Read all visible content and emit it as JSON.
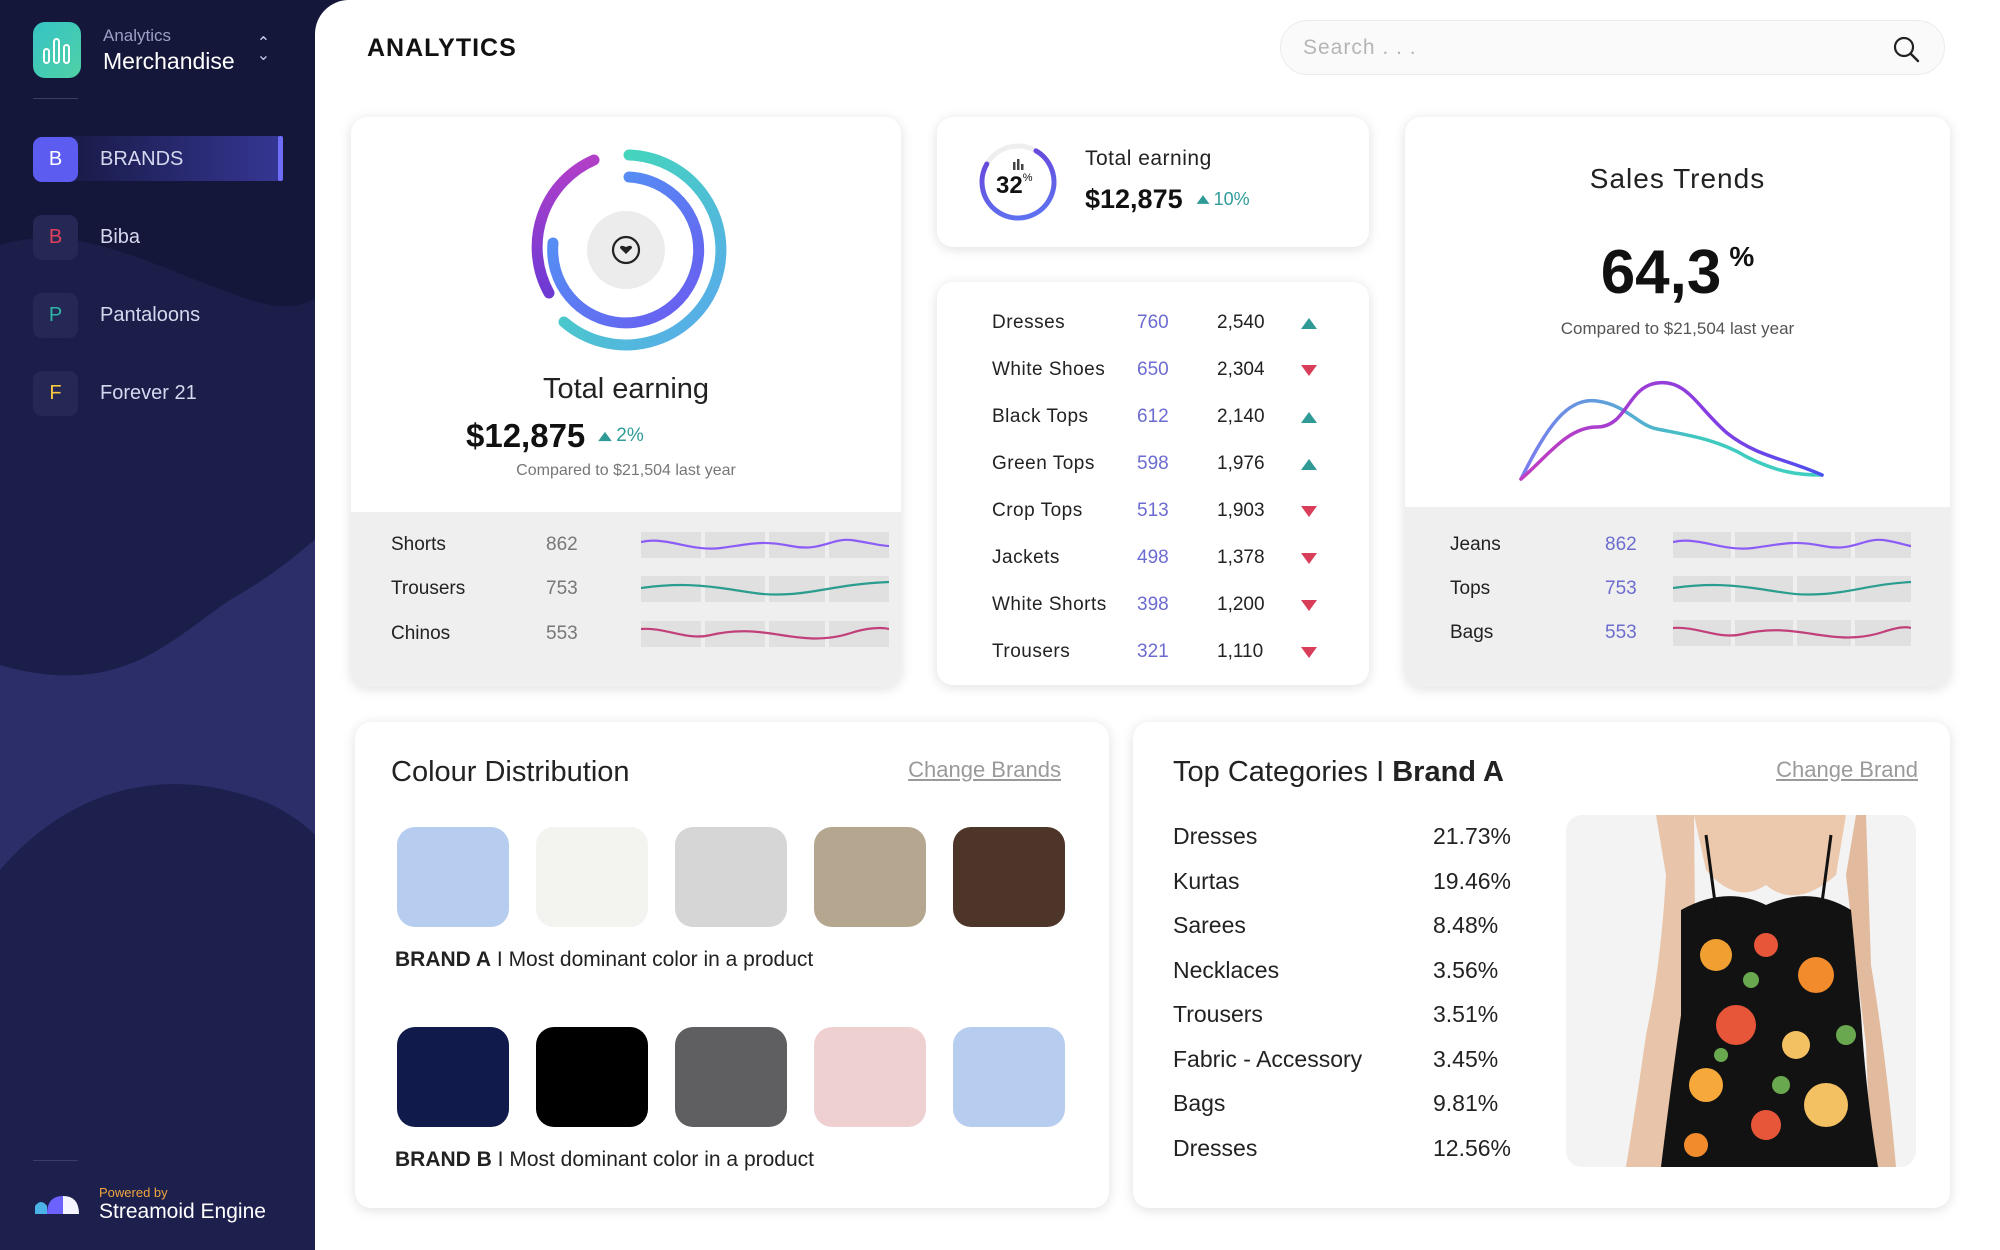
{
  "app": {
    "subtitle": "Analytics",
    "name": "Merchandise"
  },
  "nav": [
    {
      "badge": "B",
      "label": "BRANDS",
      "badge_color": "#ffffff",
      "active": true
    },
    {
      "badge": "B",
      "label": "Biba",
      "badge_color": "#e0405a"
    },
    {
      "badge": "P",
      "label": "Pantaloons",
      "badge_color": "#2fb5a8"
    },
    {
      "badge": "F",
      "label": "Forever 21",
      "badge_color": "#f5c842"
    }
  ],
  "powered": {
    "small": "Powered by",
    "name": "Streamoid Engine"
  },
  "header": {
    "title": "ANALYTICS",
    "search_placeholder": "Search . . ."
  },
  "earning_card": {
    "label": "Total earning",
    "value": "$12,875",
    "change": "2%",
    "compare": "Compared to $21,504 last year",
    "rows": [
      {
        "label": "Shorts",
        "value": "862",
        "color": "#8b5cf6"
      },
      {
        "label": "Trousers",
        "value": "753",
        "color": "#2a9d8f"
      },
      {
        "label": "Chinos",
        "value": "553",
        "color": "#c2407a"
      }
    ]
  },
  "earning_mini": {
    "percent": "32",
    "percent_sign": "%",
    "label": "Total earning",
    "value": "$12,875",
    "change": "10%"
  },
  "products": [
    {
      "name": "Dresses",
      "count": "760",
      "total": "2,540",
      "trend": "up"
    },
    {
      "name": "White Shoes",
      "count": "650",
      "total": "2,304",
      "trend": "down"
    },
    {
      "name": "Black Tops",
      "count": "612",
      "total": "2,140",
      "trend": "up"
    },
    {
      "name": "Green Tops",
      "count": "598",
      "total": "1,976",
      "trend": "up"
    },
    {
      "name": "Crop Tops",
      "count": "513",
      "total": "1,903",
      "trend": "down"
    },
    {
      "name": "Jackets",
      "count": "498",
      "total": "1,378",
      "trend": "down"
    },
    {
      "name": "White Shorts",
      "count": "398",
      "total": "1,200",
      "trend": "down"
    },
    {
      "name": "Trousers",
      "count": "321",
      "total": "1,110",
      "trend": "down"
    }
  ],
  "sales": {
    "title": "Sales Trends",
    "value": "64,3",
    "unit": "%",
    "compare": "Compared to $21,504 last year",
    "rows": [
      {
        "label": "Jeans",
        "value": "862",
        "color": "#8b5cf6"
      },
      {
        "label": "Tops",
        "value": "753",
        "color": "#2a9d8f"
      },
      {
        "label": "Bags",
        "value": "553",
        "color": "#c2407a"
      }
    ]
  },
  "colour": {
    "title": "Colour Distribution",
    "link": "Change Brands",
    "brand_a_name": "BRAND A",
    "brand_a_text": " I Most dominant color in a product",
    "brand_a_colors": [
      "#b6cdf0",
      "#f3f3ef",
      "#d6d6d6",
      "#b5a690",
      "#4e3529"
    ],
    "brand_b_name": "BRAND B",
    "brand_b_text": " I Most dominant color in a product",
    "brand_b_colors": [
      "#101a4b",
      "#000000",
      "#5f5f62",
      "#efd0d1",
      "#b6cdf0"
    ]
  },
  "categories": {
    "title": "Top Categories I ",
    "brand": "Brand A",
    "link": "Change Brand",
    "rows": [
      {
        "name": "Dresses",
        "pct": "21.73%"
      },
      {
        "name": "Kurtas",
        "pct": "19.46%"
      },
      {
        "name": "Sarees",
        "pct": "8.48%"
      },
      {
        "name": "Necklaces",
        "pct": "3.56%"
      },
      {
        "name": "Trousers",
        "pct": "3.51%"
      },
      {
        "name": "Fabric - Accessory",
        "pct": "3.45%"
      },
      {
        "name": "Bags",
        "pct": "9.81%"
      },
      {
        "name": "Dresses",
        "pct": "12.56%"
      }
    ]
  }
}
